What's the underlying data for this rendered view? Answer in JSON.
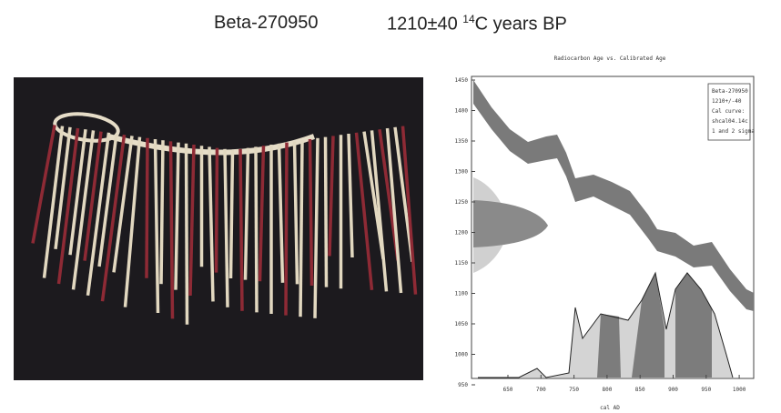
{
  "header": {
    "sample": "Beta-270950",
    "age": "1210±40",
    "isotope": "14",
    "age_unit": "C years BP"
  },
  "plot": {
    "title": "Radiocarbon Age vs. Calibrated Age",
    "y_ticks": [
      1450,
      1400,
      1350,
      1300,
      1250,
      1200,
      1150,
      1100,
      1050,
      1000,
      950
    ],
    "x_ticks": [
      650,
      700,
      750,
      800,
      850,
      900,
      950,
      1000
    ],
    "x_label": "cal AD",
    "legend": [
      "Beta-270950",
      "1210+/-40",
      "Cal curve:",
      "shcal04.14c",
      "1 and 2 sigma"
    ]
  }
}
